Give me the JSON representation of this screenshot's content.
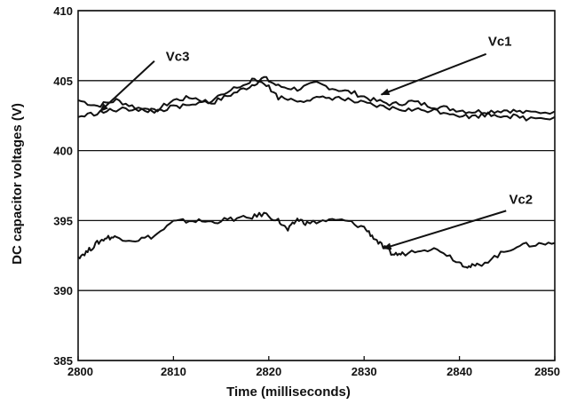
{
  "chart_data": {
    "type": "line",
    "title": "",
    "xlabel": "Time (milliseconds)",
    "ylabel": "DC capacitor voltages (V)",
    "xlim": [
      2800,
      2850
    ],
    "ylim": [
      385,
      410
    ],
    "x_ticks": [
      "2800",
      "2810",
      "2820",
      "2830",
      "2840",
      "2850"
    ],
    "y_ticks": [
      "385",
      "390",
      "395",
      "400",
      "405",
      "410"
    ],
    "grid": "horizontal",
    "legend": "none",
    "annotations": [
      "Vc1",
      "Vc2",
      "Vc3"
    ],
    "series": [
      {
        "name": "Vc1",
        "x": [
          2800,
          2802,
          2804,
          2806,
          2808,
          2810,
          2812,
          2814,
          2816,
          2818,
          2819.5,
          2821,
          2823,
          2825,
          2827,
          2829,
          2831,
          2833,
          2835,
          2837,
          2839,
          2841,
          2843,
          2845,
          2847,
          2850
        ],
        "y": [
          403.6,
          403.2,
          403.6,
          403.1,
          402.8,
          403.6,
          403.8,
          403.4,
          404.0,
          404.6,
          405.2,
          404.6,
          404.4,
          404.8,
          404.4,
          404.1,
          403.6,
          403.3,
          403.5,
          403.2,
          403.0,
          402.8,
          402.8,
          402.9,
          402.7,
          402.8
        ]
      },
      {
        "name": "Vc2",
        "x": [
          2800,
          2801,
          2802,
          2803,
          2804,
          2806,
          2808,
          2810,
          2812,
          2814,
          2816,
          2818,
          2819.5,
          2821,
          2822,
          2823,
          2824,
          2826,
          2828,
          2830,
          2831,
          2832,
          2833,
          2834,
          2836,
          2838,
          2840,
          2841,
          2842,
          2844,
          2846,
          2848,
          2850
        ],
        "y": [
          392.4,
          392.8,
          393.4,
          393.8,
          393.8,
          393.6,
          393.9,
          394.9,
          395.0,
          394.9,
          395.1,
          395.2,
          395.5,
          395.0,
          394.3,
          395.1,
          394.8,
          395.0,
          395.0,
          394.5,
          393.8,
          393.1,
          392.6,
          392.6,
          393.0,
          392.9,
          392.0,
          391.7,
          391.8,
          392.5,
          393.2,
          393.3,
          393.4
        ]
      },
      {
        "name": "Vc3",
        "x": [
          2800,
          2802,
          2804,
          2806,
          2808,
          2810,
          2812,
          2814,
          2816,
          2818,
          2819.5,
          2821,
          2823,
          2825,
          2827,
          2829,
          2831,
          2833,
          2835,
          2837,
          2839,
          2841,
          2843,
          2845,
          2847,
          2850
        ],
        "y": [
          402.4,
          402.7,
          402.9,
          403.0,
          402.8,
          403.1,
          403.2,
          403.6,
          404.3,
          405.0,
          404.9,
          403.8,
          403.6,
          403.7,
          403.8,
          403.5,
          403.2,
          403.0,
          402.9,
          402.9,
          402.7,
          402.4,
          402.6,
          402.5,
          402.3,
          402.4
        ]
      }
    ]
  }
}
